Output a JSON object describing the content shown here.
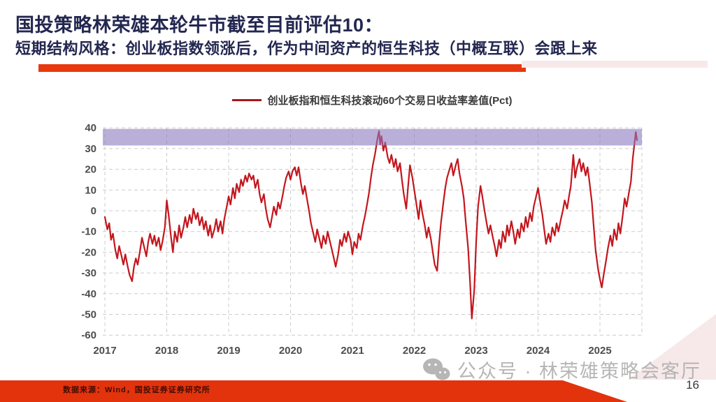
{
  "header": {
    "title": "国投策略林荣雄本轮牛市截至目前评估10：",
    "subtitle": "短期结构风格：创业板指数领涨后，作为中间资产的恒生科技（中概互联）会跟上来"
  },
  "colors": {
    "title_text": "#232750",
    "accent_red": "#E8380D",
    "footer_red": "#E2330D",
    "line_red": "#C3161D",
    "band_purple": "#8C7ABF",
    "grid_gray": "#CCCCCC",
    "tick_text": "#4D4D4D",
    "watermark_gray": "#AFAFAF"
  },
  "legend": {
    "label": "创业板指和恒生科技滚动60个交易日收益率差值(Pct)"
  },
  "footer": {
    "source": "数据来源：Wind，国投证券证券研究所",
    "watermark": "公众号 · 林荣雄策略会客厅",
    "page_number": "16"
  },
  "chart_data": {
    "type": "line",
    "title": "创业板指和恒生科技滚动60个交易日收益率差值(Pct)",
    "xlabel": "",
    "ylabel": "",
    "grid": true,
    "legend_position": "top",
    "xlim": [
      2016.95,
      2025.72
    ],
    "ylim": [
      -60,
      40
    ],
    "yticks": [
      40,
      30,
      20,
      10,
      0,
      -10,
      -20,
      -30,
      -40,
      -50,
      -60
    ],
    "xticks": [
      2017,
      2018,
      2019,
      2020,
      2021,
      2022,
      2023,
      2024,
      2025
    ],
    "highlight_band": {
      "from": 31.5,
      "to": 39.5,
      "color": "#8C7ABF",
      "opacity": 0.6
    },
    "series": [
      {
        "name": "创业板指和恒生科技滚动60个交易日收益率差值(Pct)",
        "color": "#C3161D",
        "points": [
          [
            2017.0,
            -3
          ],
          [
            2017.04,
            -9
          ],
          [
            2017.07,
            -6
          ],
          [
            2017.1,
            -14
          ],
          [
            2017.13,
            -11
          ],
          [
            2017.17,
            -19
          ],
          [
            2017.2,
            -23
          ],
          [
            2017.23,
            -17
          ],
          [
            2017.27,
            -22
          ],
          [
            2017.3,
            -26
          ],
          [
            2017.33,
            -21
          ],
          [
            2017.37,
            -27
          ],
          [
            2017.4,
            -31
          ],
          [
            2017.44,
            -34
          ],
          [
            2017.47,
            -27
          ],
          [
            2017.5,
            -23
          ],
          [
            2017.53,
            -26
          ],
          [
            2017.57,
            -19
          ],
          [
            2017.6,
            -13
          ],
          [
            2017.63,
            -17
          ],
          [
            2017.67,
            -22
          ],
          [
            2017.7,
            -15
          ],
          [
            2017.73,
            -11
          ],
          [
            2017.77,
            -16
          ],
          [
            2017.8,
            -12
          ],
          [
            2017.83,
            -17
          ],
          [
            2017.87,
            -13
          ],
          [
            2017.9,
            -19
          ],
          [
            2017.93,
            -15
          ],
          [
            2017.97,
            -8
          ],
          [
            2018.0,
            5
          ],
          [
            2018.03,
            -2
          ],
          [
            2018.07,
            -13
          ],
          [
            2018.1,
            -20
          ],
          [
            2018.13,
            -10
          ],
          [
            2018.17,
            -15
          ],
          [
            2018.2,
            -7
          ],
          [
            2018.23,
            -13
          ],
          [
            2018.27,
            -8
          ],
          [
            2018.3,
            -3
          ],
          [
            2018.33,
            -8
          ],
          [
            2018.37,
            -2
          ],
          [
            2018.4,
            -6
          ],
          [
            2018.43,
            1
          ],
          [
            2018.47,
            -4
          ],
          [
            2018.5,
            -1
          ],
          [
            2018.53,
            -7
          ],
          [
            2018.57,
            -3
          ],
          [
            2018.6,
            -9
          ],
          [
            2018.63,
            -5
          ],
          [
            2018.67,
            -12
          ],
          [
            2018.7,
            -7
          ],
          [
            2018.73,
            -13
          ],
          [
            2018.77,
            -9
          ],
          [
            2018.8,
            -4
          ],
          [
            2018.83,
            -10
          ],
          [
            2018.87,
            -5
          ],
          [
            2018.9,
            -11
          ],
          [
            2018.93,
            -4
          ],
          [
            2018.97,
            2
          ],
          [
            2019.0,
            7
          ],
          [
            2019.03,
            3
          ],
          [
            2019.07,
            11
          ],
          [
            2019.1,
            6
          ],
          [
            2019.13,
            13
          ],
          [
            2019.17,
            9
          ],
          [
            2019.2,
            15
          ],
          [
            2019.23,
            12
          ],
          [
            2019.27,
            17
          ],
          [
            2019.3,
            14
          ],
          [
            2019.33,
            18
          ],
          [
            2019.37,
            15
          ],
          [
            2019.4,
            17
          ],
          [
            2019.43,
            11
          ],
          [
            2019.47,
            15
          ],
          [
            2019.5,
            8
          ],
          [
            2019.53,
            4
          ],
          [
            2019.57,
            8
          ],
          [
            2019.6,
            1
          ],
          [
            2019.63,
            -4
          ],
          [
            2019.67,
            -8
          ],
          [
            2019.7,
            -3
          ],
          [
            2019.73,
            2
          ],
          [
            2019.77,
            -2
          ],
          [
            2019.8,
            4
          ],
          [
            2019.83,
            1
          ],
          [
            2019.87,
            7
          ],
          [
            2019.9,
            12
          ],
          [
            2019.93,
            16
          ],
          [
            2019.97,
            19
          ],
          [
            2020.0,
            15
          ],
          [
            2020.03,
            19
          ],
          [
            2020.07,
            21
          ],
          [
            2020.1,
            17
          ],
          [
            2020.13,
            21
          ],
          [
            2020.17,
            13
          ],
          [
            2020.2,
            8
          ],
          [
            2020.23,
            12
          ],
          [
            2020.27,
            5
          ],
          [
            2020.3,
            0
          ],
          [
            2020.33,
            -6
          ],
          [
            2020.37,
            -11
          ],
          [
            2020.4,
            -15
          ],
          [
            2020.43,
            -9
          ],
          [
            2020.47,
            -14
          ],
          [
            2020.5,
            -18
          ],
          [
            2020.53,
            -12
          ],
          [
            2020.57,
            -16
          ],
          [
            2020.6,
            -10
          ],
          [
            2020.63,
            -14
          ],
          [
            2020.67,
            -19
          ],
          [
            2020.7,
            -23
          ],
          [
            2020.73,
            -27
          ],
          [
            2020.77,
            -21
          ],
          [
            2020.8,
            -14
          ],
          [
            2020.83,
            -17
          ],
          [
            2020.87,
            -11
          ],
          [
            2020.9,
            -15
          ],
          [
            2020.93,
            -10
          ],
          [
            2020.97,
            -14
          ],
          [
            2021.0,
            -21
          ],
          [
            2021.03,
            -15
          ],
          [
            2021.07,
            -18
          ],
          [
            2021.1,
            -11
          ],
          [
            2021.13,
            -14
          ],
          [
            2021.17,
            -7
          ],
          [
            2021.2,
            -3
          ],
          [
            2021.23,
            2
          ],
          [
            2021.27,
            9
          ],
          [
            2021.3,
            16
          ],
          [
            2021.33,
            22
          ],
          [
            2021.37,
            28
          ],
          [
            2021.4,
            34
          ],
          [
            2021.43,
            38.5
          ],
          [
            2021.45,
            32
          ],
          [
            2021.47,
            36
          ],
          [
            2021.5,
            29
          ],
          [
            2021.53,
            33
          ],
          [
            2021.57,
            26
          ],
          [
            2021.6,
            23
          ],
          [
            2021.63,
            27
          ],
          [
            2021.67,
            21
          ],
          [
            2021.7,
            25
          ],
          [
            2021.73,
            19
          ],
          [
            2021.77,
            23
          ],
          [
            2021.8,
            15
          ],
          [
            2021.83,
            8
          ],
          [
            2021.87,
            1
          ],
          [
            2021.9,
            12
          ],
          [
            2021.93,
            22
          ],
          [
            2021.97,
            16
          ],
          [
            2022.0,
            10
          ],
          [
            2022.03,
            4
          ],
          [
            2022.07,
            -4
          ],
          [
            2022.1,
            5
          ],
          [
            2022.13,
            -1
          ],
          [
            2022.17,
            -7
          ],
          [
            2022.2,
            -13
          ],
          [
            2022.23,
            -8
          ],
          [
            2022.27,
            -14
          ],
          [
            2022.3,
            -20
          ],
          [
            2022.33,
            -26
          ],
          [
            2022.37,
            -29
          ],
          [
            2022.4,
            -16
          ],
          [
            2022.43,
            -6
          ],
          [
            2022.47,
            4
          ],
          [
            2022.5,
            11
          ],
          [
            2022.53,
            16
          ],
          [
            2022.57,
            20
          ],
          [
            2022.6,
            23
          ],
          [
            2022.63,
            17
          ],
          [
            2022.67,
            22
          ],
          [
            2022.7,
            25
          ],
          [
            2022.73,
            18
          ],
          [
            2022.77,
            12
          ],
          [
            2022.8,
            6
          ],
          [
            2022.83,
            -5
          ],
          [
            2022.87,
            -18
          ],
          [
            2022.9,
            -34
          ],
          [
            2022.93,
            -52
          ],
          [
            2022.97,
            -38
          ],
          [
            2023.0,
            -15
          ],
          [
            2023.03,
            2
          ],
          [
            2023.07,
            12
          ],
          [
            2023.1,
            7
          ],
          [
            2023.13,
            1
          ],
          [
            2023.17,
            -6
          ],
          [
            2023.2,
            -11
          ],
          [
            2023.23,
            -7
          ],
          [
            2023.27,
            -13
          ],
          [
            2023.3,
            -17
          ],
          [
            2023.33,
            -22
          ],
          [
            2023.37,
            -14
          ],
          [
            2023.4,
            -18
          ],
          [
            2023.43,
            -10
          ],
          [
            2023.47,
            -15
          ],
          [
            2023.5,
            -7
          ],
          [
            2023.53,
            -12
          ],
          [
            2023.57,
            -5
          ],
          [
            2023.6,
            -10
          ],
          [
            2023.63,
            -16
          ],
          [
            2023.67,
            -9
          ],
          [
            2023.7,
            -13
          ],
          [
            2023.73,
            -6
          ],
          [
            2023.77,
            -10
          ],
          [
            2023.8,
            -3
          ],
          [
            2023.83,
            -8
          ],
          [
            2023.87,
            -1
          ],
          [
            2023.9,
            -5
          ],
          [
            2023.93,
            2
          ],
          [
            2023.97,
            7
          ],
          [
            2024.0,
            11
          ],
          [
            2024.03,
            5
          ],
          [
            2024.07,
            -2
          ],
          [
            2024.1,
            -9
          ],
          [
            2024.13,
            -16
          ],
          [
            2024.17,
            -11
          ],
          [
            2024.2,
            -15
          ],
          [
            2024.23,
            -8
          ],
          [
            2024.27,
            -12
          ],
          [
            2024.3,
            -6
          ],
          [
            2024.33,
            -10
          ],
          [
            2024.37,
            -4
          ],
          [
            2024.4,
            0
          ],
          [
            2024.43,
            5
          ],
          [
            2024.47,
            1
          ],
          [
            2024.5,
            7
          ],
          [
            2024.53,
            12
          ],
          [
            2024.57,
            27
          ],
          [
            2024.6,
            16
          ],
          [
            2024.63,
            21
          ],
          [
            2024.67,
            25
          ],
          [
            2024.7,
            19
          ],
          [
            2024.73,
            23
          ],
          [
            2024.77,
            17
          ],
          [
            2024.8,
            21
          ],
          [
            2024.83,
            14
          ],
          [
            2024.87,
            4
          ],
          [
            2024.9,
            -8
          ],
          [
            2024.93,
            -19
          ],
          [
            2024.97,
            -28
          ],
          [
            2025.0,
            -33
          ],
          [
            2025.03,
            -37
          ],
          [
            2025.06,
            -31
          ],
          [
            2025.1,
            -24
          ],
          [
            2025.13,
            -18
          ],
          [
            2025.17,
            -12
          ],
          [
            2025.2,
            -17
          ],
          [
            2025.23,
            -9
          ],
          [
            2025.27,
            -14
          ],
          [
            2025.3,
            -6
          ],
          [
            2025.33,
            -11
          ],
          [
            2025.37,
            -2
          ],
          [
            2025.4,
            6
          ],
          [
            2025.43,
            2
          ],
          [
            2025.47,
            9
          ],
          [
            2025.5,
            14
          ],
          [
            2025.53,
            25
          ],
          [
            2025.56,
            33
          ],
          [
            2025.58,
            38
          ],
          [
            2025.6,
            34
          ]
        ]
      }
    ]
  }
}
